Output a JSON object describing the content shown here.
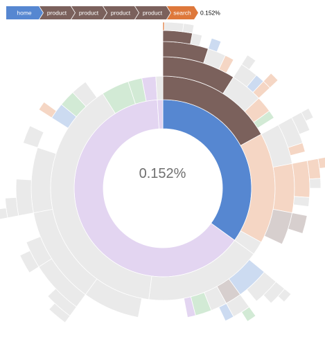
{
  "breadcrumb": {
    "items": [
      {
        "label": "home",
        "color": "#5687d1"
      },
      {
        "label": "product",
        "color": "#7b615c"
      },
      {
        "label": "product",
        "color": "#7b615c"
      },
      {
        "label": "product",
        "color": "#7b615c"
      },
      {
        "label": "product",
        "color": "#7b615c"
      },
      {
        "label": "search",
        "color": "#de783b"
      }
    ],
    "percentage": "0.152%"
  },
  "center": {
    "percentage": "0.152%"
  },
  "chart_data": {
    "type": "sunburst",
    "center_label": "0.152%",
    "colors": {
      "home": "#5687d1",
      "product": "#7b615c",
      "search": "#de783b",
      "account": "#6ab975",
      "other": "#a173d1",
      "end": "#bbbbbb"
    },
    "faded_opacity": 0.3,
    "highlighted_path": [
      "home",
      "product",
      "product",
      "product",
      "product",
      "search"
    ],
    "rings": [
      {
        "depth": 1,
        "segments": [
          {
            "name": "home",
            "start": 0.0,
            "end": 0.35,
            "highlight": true
          },
          {
            "name": "other",
            "start": 0.35,
            "end": 0.99
          },
          {
            "name": "other",
            "start": 0.99,
            "end": 1.0
          }
        ]
      },
      {
        "depth": 2,
        "segments": [
          {
            "name": "product",
            "start": 0.0,
            "end": 0.17,
            "highlight": true
          },
          {
            "name": "search",
            "start": 0.17,
            "end": 0.33
          },
          {
            "name": "end",
            "start": 0.33,
            "end": 0.35
          },
          {
            "name": "end",
            "start": 0.35,
            "end": 0.52
          },
          {
            "name": "end",
            "start": 0.52,
            "end": 0.91
          },
          {
            "name": "account",
            "start": 0.91,
            "end": 0.95
          },
          {
            "name": "account",
            "start": 0.95,
            "end": 0.97
          },
          {
            "name": "other",
            "start": 0.97,
            "end": 0.99
          },
          {
            "name": "end",
            "start": 0.99,
            "end": 1.0
          }
        ]
      },
      {
        "depth": 3,
        "segments": [
          {
            "name": "product",
            "start": 0.0,
            "end": 0.09,
            "highlight": true
          },
          {
            "name": "end",
            "start": 0.09,
            "end": 0.13
          },
          {
            "name": "search",
            "start": 0.13,
            "end": 0.15
          },
          {
            "name": "account",
            "start": 0.15,
            "end": 0.16
          },
          {
            "name": "end",
            "start": 0.17,
            "end": 0.22
          },
          {
            "name": "search",
            "start": 0.22,
            "end": 0.28
          },
          {
            "name": "product",
            "start": 0.28,
            "end": 0.32
          },
          {
            "name": "home",
            "start": 0.36,
            "end": 0.4
          },
          {
            "name": "product",
            "start": 0.4,
            "end": 0.42
          },
          {
            "name": "end",
            "start": 0.42,
            "end": 0.44
          },
          {
            "name": "account",
            "start": 0.44,
            "end": 0.46
          },
          {
            "name": "other",
            "start": 0.46,
            "end": 0.47
          },
          {
            "name": "end",
            "start": 0.53,
            "end": 0.6
          },
          {
            "name": "end",
            "start": 0.6,
            "end": 0.72
          },
          {
            "name": "end",
            "start": 0.72,
            "end": 0.8
          },
          {
            "name": "home",
            "start": 0.84,
            "end": 0.86
          },
          {
            "name": "account",
            "start": 0.86,
            "end": 0.88
          },
          {
            "name": "end",
            "start": 0.88,
            "end": 0.9
          }
        ]
      },
      {
        "depth": 4,
        "segments": [
          {
            "name": "product",
            "start": 0.0,
            "end": 0.05,
            "highlight": true
          },
          {
            "name": "end",
            "start": 0.05,
            "end": 0.07
          },
          {
            "name": "search",
            "start": 0.07,
            "end": 0.08
          },
          {
            "name": "end",
            "start": 0.09,
            "end": 0.11
          },
          {
            "name": "home",
            "start": 0.11,
            "end": 0.12
          },
          {
            "name": "search",
            "start": 0.12,
            "end": 0.13
          },
          {
            "name": "end",
            "start": 0.17,
            "end": 0.2
          },
          {
            "name": "search",
            "start": 0.2,
            "end": 0.21
          },
          {
            "name": "search",
            "start": 0.22,
            "end": 0.26
          },
          {
            "name": "end",
            "start": 0.26,
            "end": 0.27
          },
          {
            "name": "product",
            "start": 0.28,
            "end": 0.3
          },
          {
            "name": "end",
            "start": 0.36,
            "end": 0.39
          },
          {
            "name": "end",
            "start": 0.4,
            "end": 0.42
          },
          {
            "name": "home",
            "start": 0.42,
            "end": 0.43
          },
          {
            "name": "end",
            "start": 0.6,
            "end": 0.66
          },
          {
            "name": "end",
            "start": 0.66,
            "end": 0.69
          },
          {
            "name": "end",
            "start": 0.72,
            "end": 0.76
          },
          {
            "name": "end",
            "start": 0.8,
            "end": 0.82
          },
          {
            "name": "search",
            "start": 0.84,
            "end": 0.85
          }
        ]
      },
      {
        "depth": 5,
        "segments": [
          {
            "name": "product",
            "start": 0.0,
            "end": 0.03,
            "highlight": true
          },
          {
            "name": "end",
            "start": 0.03,
            "end": 0.04
          },
          {
            "name": "home",
            "start": 0.05,
            "end": 0.06
          },
          {
            "name": "end",
            "start": 0.09,
            "end": 0.1
          },
          {
            "name": "search",
            "start": 0.12,
            "end": 0.13
          },
          {
            "name": "end",
            "start": 0.17,
            "end": 0.19
          },
          {
            "name": "search",
            "start": 0.22,
            "end": 0.24
          },
          {
            "name": "end",
            "start": 0.24,
            "end": 0.25
          },
          {
            "name": "end",
            "start": 0.36,
            "end": 0.38
          },
          {
            "name": "account",
            "start": 0.4,
            "end": 0.41
          },
          {
            "name": "end",
            "start": 0.6,
            "end": 0.63
          },
          {
            "name": "end",
            "start": 0.66,
            "end": 0.68
          },
          {
            "name": "end",
            "start": 0.72,
            "end": 0.74
          }
        ]
      },
      {
        "depth": 6,
        "segments": [
          {
            "name": "search",
            "start": 0.0,
            "end": 0.0015,
            "highlight": true
          },
          {
            "name": "end",
            "start": 0.0015,
            "end": 0.02
          },
          {
            "name": "end",
            "start": 0.02,
            "end": 0.03
          },
          {
            "name": "end",
            "start": 0.17,
            "end": 0.18
          },
          {
            "name": "search",
            "start": 0.22,
            "end": 0.23
          },
          {
            "name": "end",
            "start": 0.36,
            "end": 0.37
          },
          {
            "name": "end",
            "start": 0.6,
            "end": 0.62
          },
          {
            "name": "end",
            "start": 0.72,
            "end": 0.73
          }
        ]
      }
    ]
  }
}
